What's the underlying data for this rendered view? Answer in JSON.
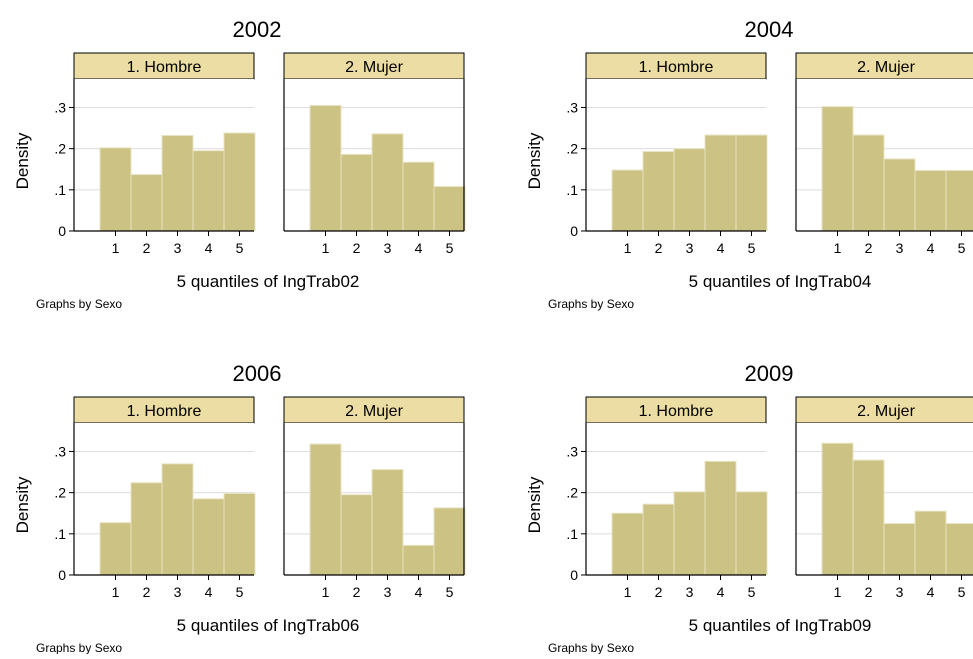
{
  "chart_data": [
    {
      "type": "bar",
      "title": "2002",
      "xlabel": "5 quantiles of IngTrab02",
      "ylabel": "Density",
      "note": "Graphs by Sexo",
      "categories": [
        "1",
        "2",
        "3",
        "4",
        "5"
      ],
      "yticks": [
        "0",
        ".1",
        ".2",
        ".3"
      ],
      "ylim": [
        0,
        0.34
      ],
      "grid": true,
      "series": [
        {
          "name": "1. Hombre",
          "values": [
            0.202,
            0.137,
            0.232,
            0.195,
            0.238
          ]
        },
        {
          "name": "2. Mujer",
          "values": [
            0.305,
            0.186,
            0.236,
            0.167,
            0.108
          ]
        }
      ]
    },
    {
      "type": "bar",
      "title": "2004",
      "xlabel": "5 quantiles of IngTrab04",
      "ylabel": "Density",
      "note": "Graphs by Sexo",
      "categories": [
        "1",
        "2",
        "3",
        "4",
        "5"
      ],
      "yticks": [
        "0",
        ".1",
        ".2",
        ".3"
      ],
      "ylim": [
        0,
        0.34
      ],
      "grid": true,
      "series": [
        {
          "name": "1. Hombre",
          "values": [
            0.148,
            0.193,
            0.2,
            0.233,
            0.233
          ]
        },
        {
          "name": "2. Mujer",
          "values": [
            0.302,
            0.233,
            0.175,
            0.147,
            0.147
          ]
        }
      ]
    },
    {
      "type": "bar",
      "title": "2006",
      "xlabel": "5 quantiles of IngTrab06",
      "ylabel": "Density",
      "note": "Graphs by Sexo",
      "categories": [
        "1",
        "2",
        "3",
        "4",
        "5"
      ],
      "yticks": [
        "0",
        ".1",
        ".2",
        ".3"
      ],
      "ylim": [
        0,
        0.34
      ],
      "grid": true,
      "series": [
        {
          "name": "1. Hombre",
          "values": [
            0.127,
            0.224,
            0.27,
            0.185,
            0.198
          ]
        },
        {
          "name": "2. Mujer",
          "values": [
            0.318,
            0.195,
            0.256,
            0.072,
            0.163
          ]
        }
      ]
    },
    {
      "type": "bar",
      "title": "2009",
      "xlabel": "5 quantiles of IngTrab09",
      "ylabel": "Density",
      "note": "Graphs by Sexo",
      "categories": [
        "1",
        "2",
        "3",
        "4",
        "5"
      ],
      "yticks": [
        "0",
        ".1",
        ".2",
        ".3"
      ],
      "ylim": [
        0,
        0.34
      ],
      "grid": true,
      "series": [
        {
          "name": "1. Hombre",
          "values": [
            0.15,
            0.172,
            0.202,
            0.276,
            0.202
          ]
        },
        {
          "name": "2. Mujer",
          "values": [
            0.32,
            0.279,
            0.125,
            0.155,
            0.125
          ]
        }
      ]
    }
  ],
  "colors": {
    "bar_fill": "#CCC284",
    "bar_edge": "#E8E3C2",
    "strip_fill": "#EBDDA3",
    "frame": "#000000",
    "grid": "#DDDDDD"
  }
}
